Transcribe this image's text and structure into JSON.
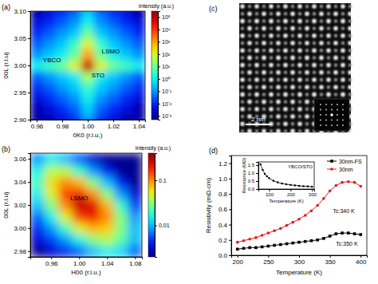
{
  "chart_data": [
    {
      "type": "heatmap",
      "title": "(a)",
      "xlabel": "0K0 (r.l.u.)",
      "ylabel": "00L (r.l.u)",
      "xlim": [
        0.955,
        1.045
      ],
      "xticks": [
        0.96,
        0.98,
        {
          "value": 1,
          "label": "1.00"
        },
        1.02,
        1.04
      ],
      "ylim": [
        2.9,
        3.1
      ],
      "yticks": [
        {
          "value": 2.9,
          "label": "2.90"
        },
        2.95,
        {
          "value": 3,
          "label": "3.00"
        },
        3.05,
        {
          "value": 3.1,
          "label": "3.10"
        }
      ],
      "x": [
        0.96,
        0.97,
        0.98,
        0.99,
        1,
        1.01,
        1.02,
        1.03,
        1.04
      ],
      "y": [
        2.9,
        2.92,
        2.94,
        2.96,
        2.98,
        3,
        3.02,
        3.04,
        3.06,
        3.08,
        3.1
      ],
      "cells": [
        [
          0.001,
          0.001,
          0.0032,
          0.01,
          0.1,
          0.01,
          0.0032,
          0.001,
          0.001
        ],
        [
          0.001,
          0.0032,
          0.01,
          0.032,
          0.32,
          0.032,
          0.01,
          0.0032,
          0.001
        ],
        [
          0.0032,
          0.01,
          0.032,
          0.1,
          1,
          0.1,
          0.032,
          0.01,
          0.0032
        ],
        [
          0.01,
          0.032,
          0.1,
          0.32,
          3.2,
          0.32,
          0.1,
          0.032,
          0.01
        ],
        [
          0.032,
          0.1,
          0.32,
          1,
          32,
          1,
          0.32,
          0.1,
          0.032
        ],
        [
          1,
          3.2,
          10,
          100,
          100000,
          100,
          10,
          3.2,
          1
        ],
        [
          0.1,
          0.32,
          1,
          10,
          1000,
          10,
          1,
          0.32,
          0.1
        ],
        [
          0.032,
          0.1,
          0.32,
          3.2,
          100,
          3.2,
          0.32,
          0.1,
          0.032
        ],
        [
          0.01,
          0.032,
          0.1,
          0.32,
          10,
          0.32,
          0.1,
          0.032,
          0.01
        ],
        [
          0.0032,
          0.01,
          0.032,
          0.1,
          1,
          0.1,
          0.032,
          0.01,
          0.0032
        ],
        [
          0.001,
          0.0032,
          0.01,
          0.032,
          0.32,
          0.032,
          0.01,
          0.0032,
          0.001
        ]
      ],
      "log": true,
      "colorbar": {
        "label": "Intensity (a.u.)",
        "range": [
          0.0005,
          300000
        ],
        "ticks": [
          {
            "value": 100000,
            "label": "10⁵"
          },
          {
            "value": 10000,
            "label": "10⁴"
          },
          {
            "value": 1000,
            "label": "10³"
          },
          {
            "value": 100,
            "label": "10²"
          },
          {
            "value": 10,
            "label": "10¹"
          },
          {
            "value": 1,
            "label": "10⁰"
          },
          {
            "value": 0.1,
            "label": "10⁻¹"
          },
          {
            "value": 0.01,
            "label": "10⁻²"
          },
          {
            "value": 0.001,
            "label": "10⁻³"
          }
        ]
      },
      "annotations": [
        {
          "text": "LSMO",
          "x": 1.018,
          "y": 3.022
        },
        {
          "text": "YBCO",
          "x": 0.972,
          "y": 3.006
        },
        {
          "text": "STO",
          "x": 1.008,
          "y": 2.978
        }
      ]
    },
    {
      "type": "heatmap",
      "title": "(b)",
      "xlabel": "H00 (r.l.u.)",
      "ylabel": "00L (r.l.u)",
      "xlim": [
        0.93,
        1.09
      ],
      "xticks": [
        0.96,
        {
          "value": 1,
          "label": "1.00"
        },
        1.04,
        1.08
      ],
      "ylim": [
        2.975,
        3.065
      ],
      "yticks": [
        2.98,
        {
          "value": 3,
          "label": "3.00"
        },
        3.02,
        3.04,
        3.06
      ],
      "x": [
        0.94,
        0.96,
        0.98,
        1,
        1.02,
        1.04,
        1.06,
        1.08
      ],
      "y": [
        2.98,
        2.99,
        3,
        3.01,
        3.02,
        3.03,
        3.04,
        3.05,
        3.06
      ],
      "cells": [
        [
          0.002,
          0.003,
          0.004,
          0.006,
          0.01,
          0.015,
          0.012,
          0.006
        ],
        [
          0.003,
          0.005,
          0.008,
          0.015,
          0.03,
          0.04,
          0.025,
          0.01
        ],
        [
          0.004,
          0.008,
          0.02,
          0.05,
          0.08,
          0.07,
          0.03,
          0.01
        ],
        [
          0.006,
          0.015,
          0.05,
          0.15,
          0.2,
          0.1,
          0.03,
          0.008
        ],
        [
          0.01,
          0.03,
          0.1,
          0.3,
          0.25,
          0.08,
          0.02,
          0.005
        ],
        [
          0.015,
          0.05,
          0.15,
          0.2,
          0.1,
          0.03,
          0.008,
          0.003
        ],
        [
          0.02,
          0.06,
          0.1,
          0.08,
          0.03,
          0.01,
          0.004,
          0.002
        ],
        [
          0.015,
          0.04,
          0.04,
          0.02,
          0.008,
          0.004,
          0.002,
          0.002
        ],
        [
          0.008,
          0.015,
          0.01,
          0.006,
          0.003,
          0.002,
          0.002,
          0.002
        ]
      ],
      "log": true,
      "colorbar": {
        "label": "Intensity (a.u.)",
        "range": [
          0.002,
          0.4
        ],
        "ticks": [
          0.01,
          0.1
        ]
      },
      "annotations": [
        {
          "text": "LSMO",
          "x": 1.0,
          "y": 3.024
        }
      ]
    },
    {
      "type": "image",
      "title": "(c)",
      "scale_bar": "2 nm"
    },
    {
      "type": "line",
      "title": "(d)",
      "xlabel": "Temperature (K)",
      "ylabel": "Resistivity (mΩ-cm)",
      "xlim": [
        190,
        410
      ],
      "xticks": [
        200,
        250,
        300,
        350,
        400
      ],
      "ylim": [
        0,
        1.3
      ],
      "yticks": [
        {
          "value": 0,
          "label": "0.0"
        },
        0.2,
        0.4,
        0.6,
        0.8,
        {
          "value": 1,
          "label": "1.0"
        },
        1.2
      ],
      "x": [
        200,
        210,
        220,
        230,
        240,
        250,
        260,
        270,
        280,
        290,
        300,
        310,
        320,
        330,
        340,
        350,
        360,
        370,
        380,
        390,
        400
      ],
      "series": [
        {
          "name": "30nm-FS",
          "color": "#000000",
          "marker": "square",
          "values": [
            0.08,
            0.09,
            0.1,
            0.1,
            0.11,
            0.12,
            0.13,
            0.14,
            0.15,
            0.16,
            0.17,
            0.18,
            0.19,
            0.2,
            0.22,
            0.25,
            0.28,
            0.29,
            0.29,
            0.28,
            0.27
          ]
        },
        {
          "name": "30nm",
          "color": "#e8161b",
          "marker": "circle",
          "values": [
            0.17,
            0.19,
            0.21,
            0.23,
            0.26,
            0.29,
            0.32,
            0.35,
            0.39,
            0.43,
            0.47,
            0.52,
            0.58,
            0.65,
            0.74,
            0.84,
            0.91,
            0.95,
            0.96,
            0.95,
            0.9
          ]
        }
      ],
      "legend": "upper right",
      "annotations": [
        {
          "text": "Tc:340 K",
          "x": 355,
          "y": 0.55
        },
        {
          "text": "Tc:350 K",
          "x": 360,
          "y": 0.12
        }
      ]
    },
    {
      "type": "line",
      "title": "YBCO/STO",
      "xlabel": "Temperature (K)",
      "ylabel": "Resistance (MΩ)",
      "xlim": [
        50,
        310
      ],
      "xticks": [
        100,
        200,
        300
      ],
      "ylim": [
        0,
        1.7
      ],
      "yticks": [
        {
          "value": 0,
          "label": "0.0"
        },
        0.5,
        {
          "value": 1,
          "label": "1.0"
        },
        1.5
      ],
      "x": [
        60,
        70,
        80,
        90,
        100,
        120,
        140,
        160,
        180,
        200,
        220,
        240,
        260,
        280,
        300
      ],
      "series": [
        {
          "color": "#000000",
          "marker": "square",
          "values": [
            1.55,
            1.2,
            0.95,
            0.8,
            0.68,
            0.52,
            0.42,
            0.35,
            0.3,
            0.26,
            0.23,
            0.2,
            0.18,
            0.17,
            0.15
          ]
        }
      ]
    }
  ]
}
